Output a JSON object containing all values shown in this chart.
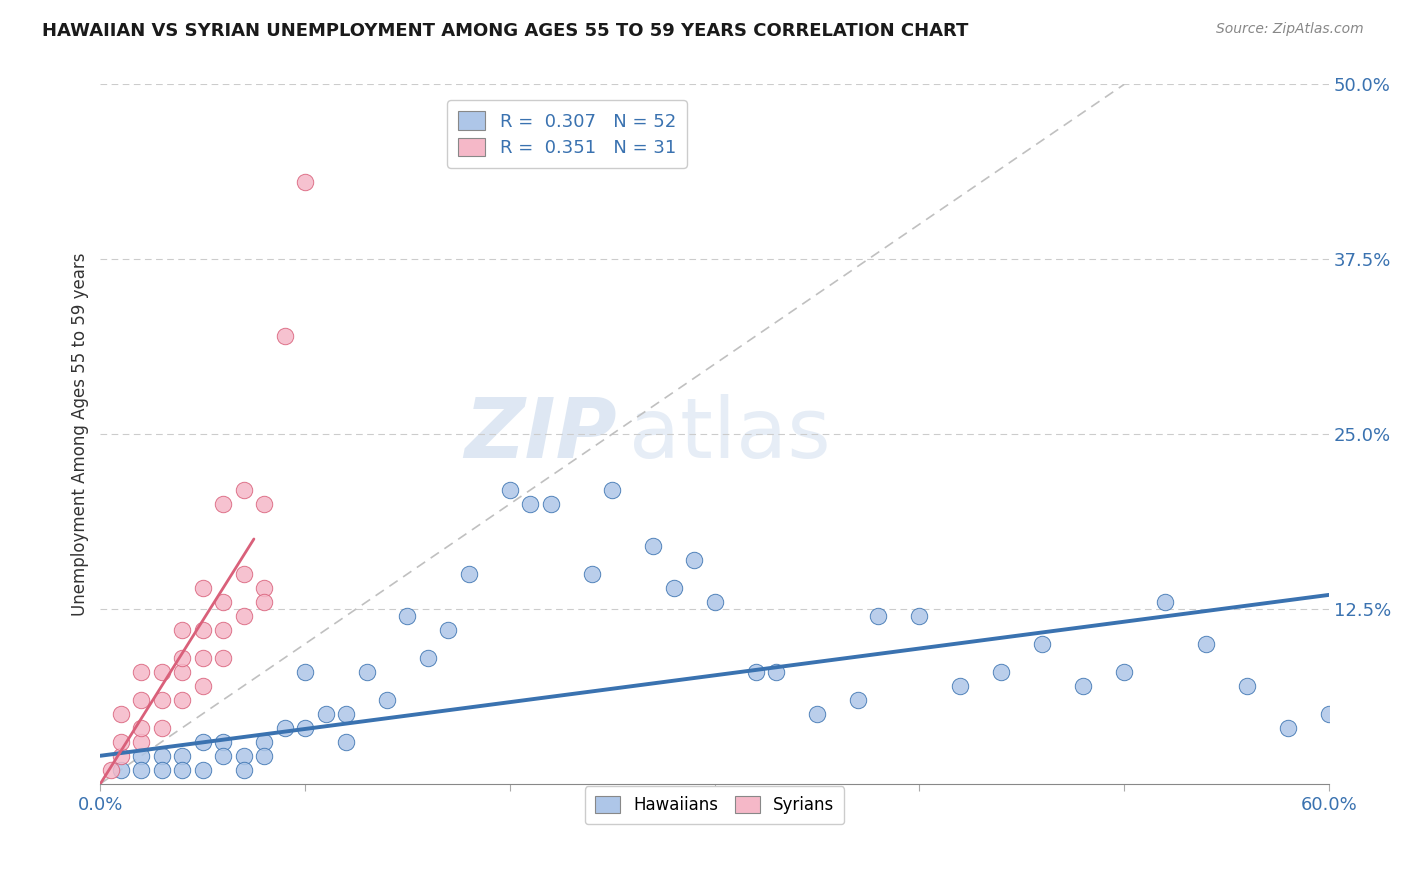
{
  "title": "HAWAIIAN VS SYRIAN UNEMPLOYMENT AMONG AGES 55 TO 59 YEARS CORRELATION CHART",
  "source": "Source: ZipAtlas.com",
  "ylabel": "Unemployment Among Ages 55 to 59 years",
  "xlim": [
    0.0,
    0.6
  ],
  "ylim": [
    0.0,
    0.5
  ],
  "xtick_positions": [
    0.0,
    0.1,
    0.2,
    0.3,
    0.4,
    0.5,
    0.6
  ],
  "xticklabels_show": [
    "0.0%",
    "",
    "",
    "",
    "",
    "",
    "60.0%"
  ],
  "ytick_positions": [
    0.0,
    0.125,
    0.25,
    0.375,
    0.5
  ],
  "ytick_labels": [
    "",
    "12.5%",
    "25.0%",
    "37.5%",
    "50.0%"
  ],
  "hawaii_R": 0.307,
  "hawaii_N": 52,
  "syria_R": 0.351,
  "syria_N": 31,
  "hawaii_color": "#aec6e8",
  "syria_color": "#f5b8c8",
  "hawaii_line_color": "#3a72b0",
  "syria_line_color": "#d9607a",
  "background_color": "#ffffff",
  "grid_color": "#cccccc",
  "watermark_zip": "ZIP",
  "watermark_atlas": "atlas",
  "hawaii_x": [
    0.01,
    0.02,
    0.02,
    0.03,
    0.03,
    0.04,
    0.04,
    0.05,
    0.05,
    0.06,
    0.06,
    0.07,
    0.07,
    0.08,
    0.08,
    0.09,
    0.1,
    0.1,
    0.11,
    0.12,
    0.12,
    0.13,
    0.14,
    0.15,
    0.16,
    0.17,
    0.18,
    0.2,
    0.21,
    0.22,
    0.24,
    0.25,
    0.27,
    0.28,
    0.29,
    0.3,
    0.32,
    0.33,
    0.35,
    0.37,
    0.38,
    0.4,
    0.42,
    0.44,
    0.46,
    0.48,
    0.5,
    0.52,
    0.54,
    0.56,
    0.58,
    0.6
  ],
  "hawaii_y": [
    0.01,
    0.02,
    0.01,
    0.02,
    0.01,
    0.02,
    0.01,
    0.03,
    0.01,
    0.03,
    0.02,
    0.02,
    0.01,
    0.03,
    0.02,
    0.04,
    0.08,
    0.04,
    0.05,
    0.05,
    0.03,
    0.08,
    0.06,
    0.12,
    0.09,
    0.11,
    0.15,
    0.21,
    0.2,
    0.2,
    0.15,
    0.21,
    0.17,
    0.14,
    0.16,
    0.13,
    0.08,
    0.08,
    0.05,
    0.06,
    0.12,
    0.12,
    0.07,
    0.08,
    0.1,
    0.07,
    0.08,
    0.13,
    0.1,
    0.07,
    0.04,
    0.05
  ],
  "syria_x": [
    0.005,
    0.01,
    0.01,
    0.01,
    0.02,
    0.02,
    0.02,
    0.02,
    0.03,
    0.03,
    0.03,
    0.04,
    0.04,
    0.04,
    0.04,
    0.05,
    0.05,
    0.05,
    0.05,
    0.06,
    0.06,
    0.06,
    0.06,
    0.07,
    0.07,
    0.07,
    0.08,
    0.08,
    0.08,
    0.09,
    0.1
  ],
  "syria_y": [
    0.01,
    0.02,
    0.03,
    0.05,
    0.03,
    0.04,
    0.06,
    0.08,
    0.04,
    0.06,
    0.08,
    0.06,
    0.08,
    0.09,
    0.11,
    0.07,
    0.09,
    0.11,
    0.14,
    0.09,
    0.11,
    0.13,
    0.2,
    0.12,
    0.15,
    0.21,
    0.14,
    0.13,
    0.2,
    0.32,
    0.43
  ],
  "hawaii_line_x0": 0.0,
  "hawaii_line_y0": 0.02,
  "hawaii_line_x1": 0.6,
  "hawaii_line_y1": 0.135,
  "syria_line_x0": 0.0,
  "syria_line_y0": 0.0,
  "syria_line_x1": 0.075,
  "syria_line_y1": 0.175
}
